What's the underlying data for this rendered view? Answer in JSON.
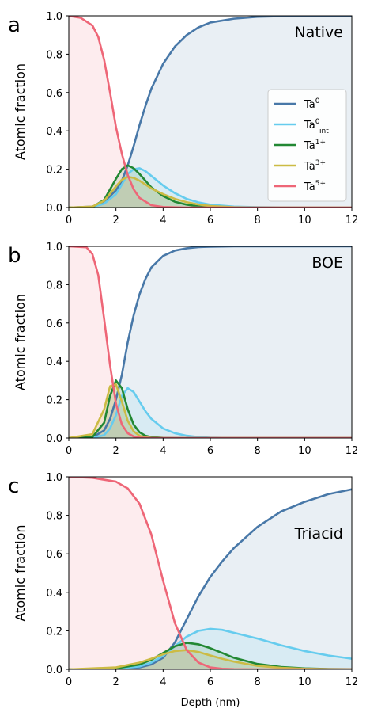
{
  "colors": {
    "Ta0": "#4878a8",
    "Ta0_int": "#66ccee",
    "Ta1": "#228833",
    "Ta3": "#ccbb44",
    "Ta5": "#ee6677"
  },
  "legend": {
    "entries": [
      {
        "key": "Ta0",
        "base": "Ta",
        "sup": "0",
        "sub": ""
      },
      {
        "key": "Ta0_int",
        "base": "Ta",
        "sup": "0",
        "sub": "int"
      },
      {
        "key": "Ta1",
        "base": "Ta",
        "sup": "1+",
        "sub": ""
      },
      {
        "key": "Ta3",
        "base": "Ta",
        "sup": "3+",
        "sub": ""
      },
      {
        "key": "Ta5",
        "base": "Ta",
        "sup": "5+",
        "sub": ""
      }
    ],
    "placement": "right, inside panel a"
  },
  "chart_data": [
    {
      "type": "area",
      "panel_letter": "a",
      "panel_name": "Native",
      "ylabel": "Atomic fraction",
      "xlabel": "",
      "xlim": [
        0,
        12
      ],
      "ylim": [
        0,
        1.0
      ],
      "xticks": [
        "0",
        "2",
        "4",
        "6",
        "8",
        "10",
        "12"
      ],
      "yticks": [
        "0.0",
        "0.2",
        "0.4",
        "0.6",
        "0.8",
        "1.0"
      ],
      "grid": false,
      "series": [
        {
          "key": "Ta0",
          "name": "Ta0",
          "x": [
            0,
            1,
            1.5,
            2,
            2.25,
            2.5,
            2.75,
            3,
            3.25,
            3.5,
            4,
            4.5,
            5,
            5.5,
            6,
            7,
            8,
            9,
            10,
            11,
            12
          ],
          "y": [
            0,
            0.005,
            0.03,
            0.09,
            0.14,
            0.22,
            0.32,
            0.43,
            0.53,
            0.62,
            0.75,
            0.84,
            0.9,
            0.94,
            0.965,
            0.985,
            0.995,
            0.998,
            0.999,
            1.0,
            1.0
          ]
        },
        {
          "key": "Ta0_int",
          "name": "Ta0_int",
          "x": [
            0,
            1,
            1.5,
            2,
            2.25,
            2.5,
            2.75,
            3,
            3.25,
            3.5,
            4,
            4.5,
            5,
            5.5,
            6,
            7,
            8,
            9,
            10,
            11,
            12
          ],
          "y": [
            0,
            0.003,
            0.02,
            0.07,
            0.12,
            0.175,
            0.2,
            0.205,
            0.19,
            0.165,
            0.115,
            0.075,
            0.045,
            0.027,
            0.015,
            0.005,
            0.002,
            0.001,
            0,
            0,
            0
          ]
        },
        {
          "key": "Ta1",
          "name": "Ta1",
          "x": [
            0,
            1,
            1.5,
            2,
            2.25,
            2.5,
            2.75,
            3,
            3.25,
            3.5,
            4,
            4.5,
            5,
            5.5,
            6,
            7,
            8,
            9,
            10,
            11,
            12
          ],
          "y": [
            0,
            0.003,
            0.04,
            0.15,
            0.2,
            0.22,
            0.205,
            0.175,
            0.14,
            0.105,
            0.06,
            0.03,
            0.015,
            0.006,
            0.002,
            0,
            0,
            0,
            0,
            0,
            0
          ]
        },
        {
          "key": "Ta3",
          "name": "Ta3",
          "x": [
            0,
            1,
            1.5,
            2,
            2.25,
            2.5,
            2.75,
            3,
            3.25,
            3.5,
            4,
            4.5,
            5,
            5.5,
            6,
            7,
            8,
            9,
            10,
            11,
            12
          ],
          "y": [
            0,
            0.005,
            0.035,
            0.11,
            0.145,
            0.16,
            0.155,
            0.14,
            0.12,
            0.1,
            0.07,
            0.045,
            0.028,
            0.016,
            0.008,
            0.002,
            0,
            0,
            0,
            0,
            0
          ]
        },
        {
          "key": "Ta5",
          "name": "Ta5",
          "x": [
            0,
            0.5,
            1,
            1.25,
            1.5,
            1.75,
            2,
            2.25,
            2.5,
            2.75,
            3,
            3.5,
            4,
            5,
            6,
            8,
            12
          ],
          "y": [
            1.0,
            0.99,
            0.95,
            0.89,
            0.77,
            0.6,
            0.42,
            0.28,
            0.17,
            0.095,
            0.05,
            0.012,
            0.003,
            0,
            0,
            0,
            0
          ]
        }
      ]
    },
    {
      "type": "area",
      "panel_letter": "b",
      "panel_name": "BOE",
      "ylabel": "Atomic fraction",
      "xlabel": "",
      "xlim": [
        0,
        12
      ],
      "ylim": [
        0,
        1.0
      ],
      "xticks": [
        "0",
        "2",
        "4",
        "6",
        "8",
        "10",
        "12"
      ],
      "yticks": [
        "0.0",
        "0.2",
        "0.4",
        "0.6",
        "0.8",
        "1.0"
      ],
      "grid": false,
      "series": [
        {
          "key": "Ta0",
          "name": "Ta0",
          "x": [
            0,
            1,
            1.5,
            1.75,
            2,
            2.25,
            2.5,
            2.75,
            3,
            3.25,
            3.5,
            4,
            4.5,
            5,
            5.5,
            6,
            7,
            8,
            10,
            12
          ],
          "y": [
            0,
            0.003,
            0.04,
            0.1,
            0.2,
            0.33,
            0.5,
            0.64,
            0.75,
            0.83,
            0.89,
            0.95,
            0.978,
            0.99,
            0.996,
            0.998,
            1.0,
            1.0,
            1.0,
            1.0
          ]
        },
        {
          "key": "Ta0_int",
          "name": "Ta0_int",
          "x": [
            0,
            1,
            1.5,
            1.75,
            2,
            2.25,
            2.5,
            2.75,
            3,
            3.25,
            3.5,
            4,
            4.5,
            5,
            5.5,
            6,
            7,
            8,
            10,
            12
          ],
          "y": [
            0,
            0.002,
            0.015,
            0.05,
            0.12,
            0.22,
            0.26,
            0.24,
            0.19,
            0.14,
            0.1,
            0.05,
            0.025,
            0.012,
            0.005,
            0.002,
            0,
            0,
            0,
            0
          ]
        },
        {
          "key": "Ta1",
          "name": "Ta1",
          "x": [
            0,
            1,
            1.5,
            1.75,
            2,
            2.25,
            2.5,
            2.75,
            3,
            3.25,
            3.5,
            4,
            4.5,
            5,
            5.5,
            6,
            7,
            8,
            10,
            12
          ],
          "y": [
            0,
            0.005,
            0.08,
            0.22,
            0.3,
            0.26,
            0.15,
            0.07,
            0.03,
            0.012,
            0.005,
            0.001,
            0,
            0,
            0,
            0,
            0,
            0,
            0,
            0
          ]
        },
        {
          "key": "Ta3",
          "name": "Ta3",
          "x": [
            0,
            1,
            1.5,
            1.75,
            2,
            2.25,
            2.5,
            2.75,
            3,
            3.25,
            3.5,
            4,
            4.5,
            5,
            5.5,
            6,
            7,
            8,
            10,
            12
          ],
          "y": [
            0,
            0.02,
            0.15,
            0.27,
            0.28,
            0.19,
            0.09,
            0.035,
            0.012,
            0.004,
            0.001,
            0,
            0,
            0,
            0,
            0,
            0,
            0,
            0,
            0
          ]
        },
        {
          "key": "Ta5",
          "name": "Ta5",
          "x": [
            0,
            0.75,
            1,
            1.25,
            1.5,
            1.75,
            2,
            2.25,
            2.5,
            2.75,
            3,
            3.5,
            4,
            6,
            12
          ],
          "y": [
            1.0,
            0.995,
            0.96,
            0.85,
            0.62,
            0.38,
            0.18,
            0.07,
            0.025,
            0.008,
            0.002,
            0,
            0,
            0,
            0
          ]
        }
      ]
    },
    {
      "type": "area",
      "panel_letter": "c",
      "panel_name": "Triacid",
      "ylabel": "Atomic fraction",
      "xlabel": "Depth (nm)",
      "xlim": [
        0,
        12
      ],
      "ylim": [
        0,
        1.0
      ],
      "xticks": [
        "0",
        "2",
        "4",
        "6",
        "8",
        "10",
        "12"
      ],
      "yticks": [
        "0.0",
        "0.2",
        "0.4",
        "0.6",
        "0.8",
        "1.0"
      ],
      "grid": false,
      "series": [
        {
          "key": "Ta0",
          "name": "Ta0",
          "x": [
            0,
            2,
            3,
            3.5,
            4,
            4.5,
            5,
            5.5,
            6,
            6.5,
            7,
            8,
            9,
            10,
            11,
            12
          ],
          "y": [
            0,
            0.002,
            0.01,
            0.025,
            0.06,
            0.14,
            0.26,
            0.38,
            0.48,
            0.56,
            0.63,
            0.74,
            0.82,
            0.87,
            0.91,
            0.935
          ]
        },
        {
          "key": "Ta0_int",
          "name": "Ta0_int",
          "x": [
            0,
            2,
            3,
            3.5,
            4,
            4.5,
            5,
            5.5,
            6,
            6.5,
            7,
            8,
            9,
            10,
            11,
            12
          ],
          "y": [
            0,
            0.003,
            0.015,
            0.035,
            0.07,
            0.12,
            0.17,
            0.2,
            0.21,
            0.205,
            0.19,
            0.16,
            0.125,
            0.095,
            0.072,
            0.055
          ]
        },
        {
          "key": "Ta1",
          "name": "Ta1",
          "x": [
            0,
            2,
            3,
            3.5,
            4,
            4.5,
            5,
            5.5,
            6,
            6.5,
            7,
            8,
            9,
            10,
            11,
            12
          ],
          "y": [
            0,
            0.005,
            0.025,
            0.05,
            0.085,
            0.12,
            0.138,
            0.13,
            0.11,
            0.085,
            0.06,
            0.028,
            0.012,
            0.005,
            0.002,
            0.001
          ]
        },
        {
          "key": "Ta3",
          "name": "Ta3",
          "x": [
            0,
            2,
            3,
            3.5,
            4,
            4.5,
            5,
            5.5,
            6,
            6.5,
            7,
            8,
            9,
            10,
            11,
            12
          ],
          "y": [
            0,
            0.01,
            0.035,
            0.055,
            0.078,
            0.095,
            0.1,
            0.09,
            0.072,
            0.055,
            0.04,
            0.018,
            0.008,
            0.003,
            0.001,
            0
          ]
        },
        {
          "key": "Ta5",
          "name": "Ta5",
          "x": [
            0,
            1,
            2,
            2.5,
            3,
            3.5,
            4,
            4.5,
            5,
            5.5,
            6,
            6.5,
            7,
            8,
            12
          ],
          "y": [
            1.0,
            0.995,
            0.975,
            0.94,
            0.86,
            0.7,
            0.46,
            0.24,
            0.1,
            0.035,
            0.01,
            0.003,
            0.001,
            0,
            0
          ]
        }
      ]
    }
  ]
}
